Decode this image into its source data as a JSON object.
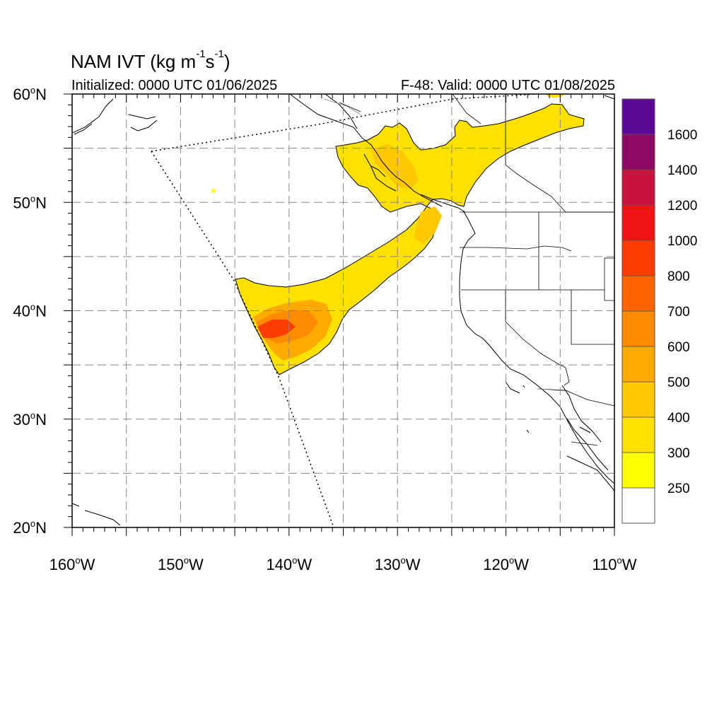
{
  "header": {
    "title_main": "NAM IVT (kg m",
    "title_sup1": "-1",
    "title_mid": "s",
    "title_sup2": "-1",
    "title_end": ")",
    "initialized": "Initialized: 0000 UTC 01/06/2025",
    "valid": "F-48: Valid: 0000 UTC 01/08/2025"
  },
  "map": {
    "lat_labels": [
      {
        "value": 60,
        "main": "60",
        "deg": "o",
        "hem": "N"
      },
      {
        "value": 50,
        "main": "50",
        "deg": "o",
        "hem": "N"
      },
      {
        "value": 40,
        "main": "40",
        "deg": "o",
        "hem": "N"
      },
      {
        "value": 30,
        "main": "30",
        "deg": "o",
        "hem": "N"
      },
      {
        "value": 20,
        "main": "20",
        "deg": "o",
        "hem": "N"
      }
    ],
    "lon_labels": [
      {
        "value": -160,
        "main": "160",
        "deg": "o",
        "hem": "W"
      },
      {
        "value": -150,
        "main": "150",
        "deg": "o",
        "hem": "W"
      },
      {
        "value": -140,
        "main": "140",
        "deg": "o",
        "hem": "W"
      },
      {
        "value": -130,
        "main": "130",
        "deg": "o",
        "hem": "W"
      },
      {
        "value": -120,
        "main": "120",
        "deg": "o",
        "hem": "W"
      },
      {
        "value": -110,
        "main": "110",
        "deg": "o",
        "hem": "W"
      }
    ],
    "lon_range": [
      -160,
      -110
    ],
    "lat_range": [
      20,
      60
    ],
    "grid_lons": [
      -155,
      -150,
      -145,
      -140,
      -135,
      -130,
      -125,
      -120,
      -115
    ],
    "grid_lats": [
      25,
      30,
      35,
      40,
      45,
      50,
      55
    ]
  },
  "colorbar": {
    "colors": [
      "#ffffff",
      "#ffff00",
      "#ffe100",
      "#ffc800",
      "#ffaa00",
      "#ff8c00",
      "#ff6400",
      "#ff3c00",
      "#f01414",
      "#c8143c",
      "#8c0a64",
      "#5a0a96"
    ],
    "labels": [
      "250",
      "300",
      "400",
      "500",
      "600",
      "700",
      "800",
      "1000",
      "1200",
      "1400",
      "1600"
    ]
  }
}
